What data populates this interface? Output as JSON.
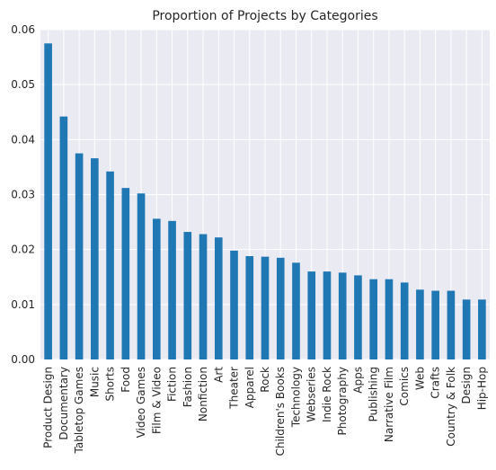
{
  "chart_data": {
    "type": "bar",
    "title": "Proportion of Projects by Categories",
    "xlabel": "",
    "ylabel": "",
    "ylim": [
      0,
      0.06
    ],
    "yticks": [
      "0.00",
      "0.01",
      "0.02",
      "0.03",
      "0.04",
      "0.05",
      "0.06"
    ],
    "grid": true,
    "bar_color": "#1f77b4",
    "background_color": "#eaeaf2",
    "grid_color": "#ffffff",
    "categories": [
      "Product Design",
      "Documentary",
      "Tabletop Games",
      "Music",
      "Shorts",
      "Food",
      "Video Games",
      "Film & Video",
      "Fiction",
      "Fashion",
      "Nonfiction",
      "Art",
      "Theater",
      "Apparel",
      "Rock",
      "Children's Books",
      "Technology",
      "Webseries",
      "Indie Rock",
      "Photography",
      "Apps",
      "Publishing",
      "Narrative Film",
      "Comics",
      "Web",
      "Crafts",
      "Country & Folk",
      "Design",
      "Hip-Hop"
    ],
    "values": [
      0.0575,
      0.0442,
      0.0375,
      0.0366,
      0.0342,
      0.0312,
      0.0302,
      0.0256,
      0.0252,
      0.0232,
      0.0228,
      0.0222,
      0.0198,
      0.0188,
      0.0187,
      0.0185,
      0.0176,
      0.016,
      0.016,
      0.0158,
      0.0153,
      0.0146,
      0.0146,
      0.014,
      0.0127,
      0.0125,
      0.0125,
      0.0109,
      0.0109
    ]
  }
}
